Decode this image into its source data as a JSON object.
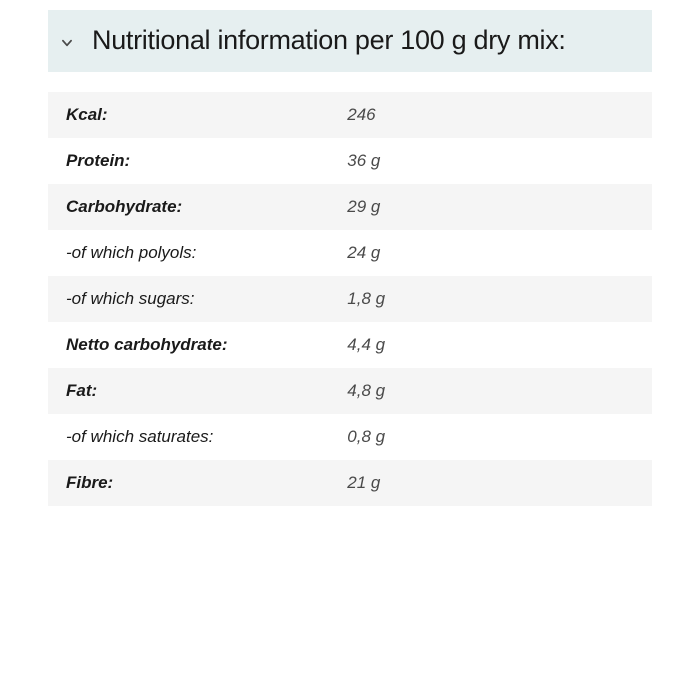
{
  "header": {
    "title": "Nutritional information per 100 g dry mix:",
    "title_color": "#1a1a1a",
    "header_bg": "#e6eff0"
  },
  "table": {
    "row_bg_alt": "#f5f5f5",
    "row_bg": "#ffffff",
    "text_color": "#1a1a1a",
    "value_color": "#4a4a4a",
    "label_col_width": "48%",
    "value_col_width": "52%",
    "font_size": 17,
    "rows": [
      {
        "label": "Kcal:",
        "value": "246",
        "bold": true
      },
      {
        "label": "Protein:",
        "value": "36 g",
        "bold": true
      },
      {
        "label": "Carbohydrate:",
        "value": "29 g",
        "bold": true
      },
      {
        "label": "-of which polyols:",
        "value": "24 g",
        "bold": false
      },
      {
        "label": "-of which sugars:",
        "value": "1,8 g",
        "bold": false
      },
      {
        "label": "Netto carbohydrate:",
        "value": "4,4 g",
        "bold": true
      },
      {
        "label": "Fat:",
        "value": "4,8 g",
        "bold": true
      },
      {
        "label": "-of which saturates:",
        "value": "0,8 g",
        "bold": false
      },
      {
        "label": "Fibre:",
        "value": "21 g",
        "bold": true
      }
    ]
  },
  "chevron_color": "#4a4a4a"
}
